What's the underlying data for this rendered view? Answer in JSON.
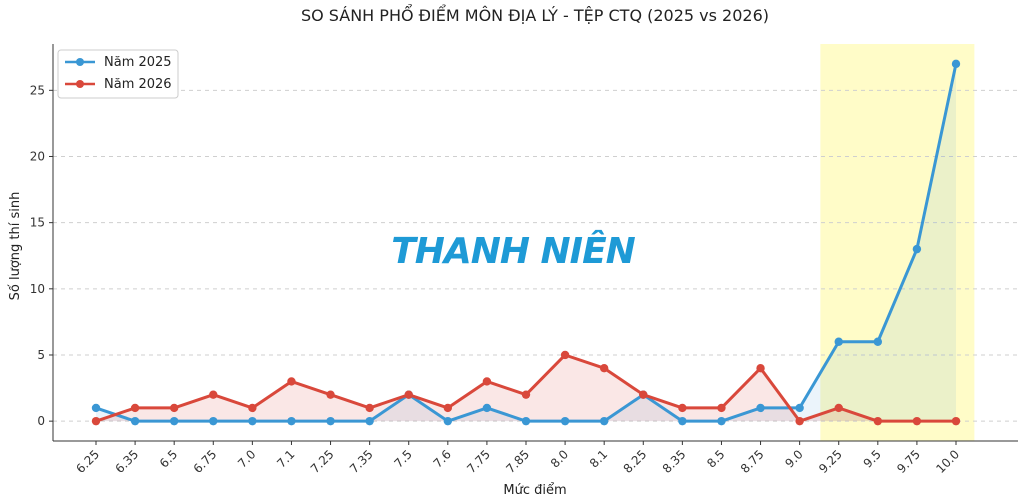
{
  "chart_data": {
    "type": "line",
    "title": "SO SÁNH PHỔ ĐIỂM MÔN ĐỊA LÝ - TỆP CTQ (2025 vs 2026)",
    "xlabel": "Mức điểm",
    "ylabel": "Số lượng thí sinh",
    "categories": [
      "6.25",
      "6.35",
      "6.5",
      "6.75",
      "7.0",
      "7.1",
      "7.25",
      "7.35",
      "7.5",
      "7.6",
      "7.75",
      "7.85",
      "8.0",
      "8.1",
      "8.25",
      "8.35",
      "8.5",
      "8.75",
      "9.0",
      "9.25",
      "9.5",
      "9.75",
      "10.0"
    ],
    "series": [
      {
        "name": "Năm 2025",
        "color": "#3a97d4",
        "values": [
          1,
          0,
          0,
          0,
          0,
          0,
          0,
          0,
          2,
          0,
          1,
          0,
          0,
          0,
          2,
          0,
          0,
          1,
          1,
          6,
          6,
          13,
          27
        ]
      },
      {
        "name": "Năm 2026",
        "color": "#d9483b",
        "values": [
          0,
          1,
          1,
          2,
          1,
          3,
          2,
          1,
          2,
          1,
          3,
          2,
          5,
          4,
          2,
          1,
          1,
          4,
          0,
          1,
          0,
          0,
          0
        ]
      }
    ],
    "ylim": [
      -1.5,
      28.5
    ],
    "yticks": [
      0,
      5,
      10,
      15,
      20,
      25
    ],
    "grid": "horizontal-dashed",
    "legend": "top-left",
    "highlight_range": [
      "9.25",
      "10.0"
    ],
    "highlight_color": "#fffcc8"
  },
  "watermark": "THANH NIÊN"
}
